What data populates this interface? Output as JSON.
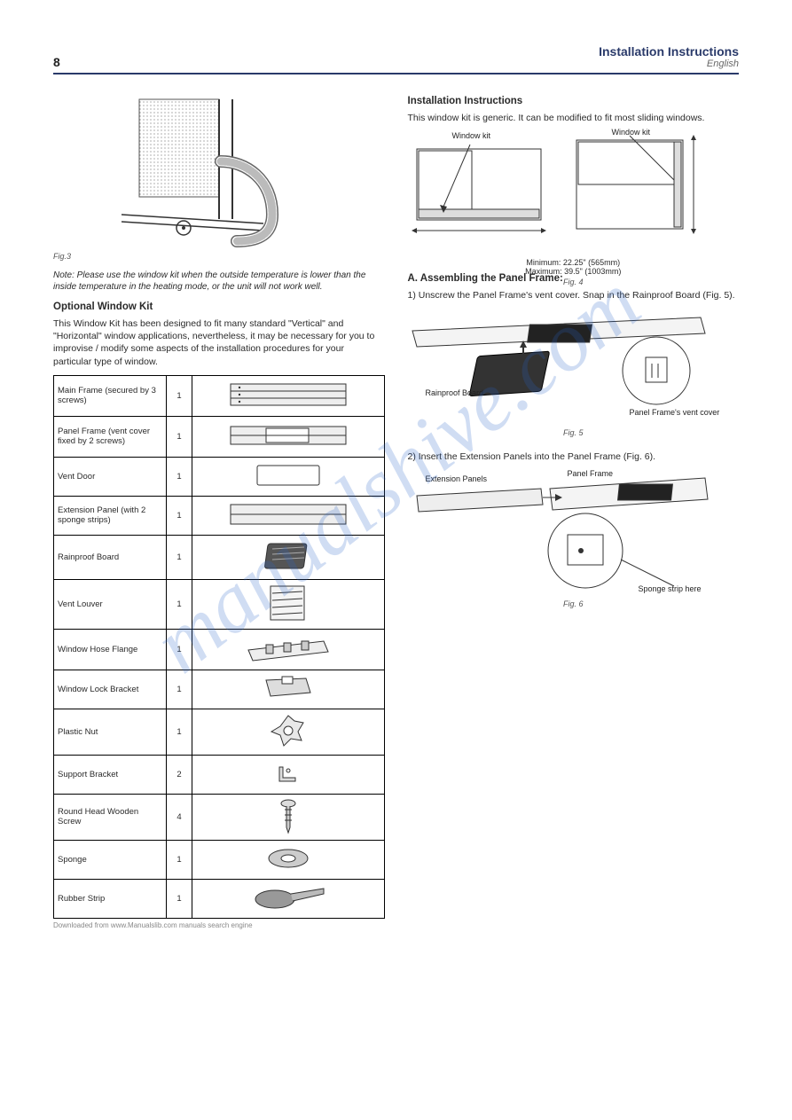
{
  "header": {
    "page_no": "8",
    "title": "Installation Instructions",
    "lang": "English"
  },
  "col1": {
    "fig3_caption": "Fig.3",
    "note_temp": "Note: Please use the window kit when the outside temperature is lower than the inside temperature in the heating mode, or the unit will not work well.",
    "sec_kit_title": "Optional Window Kit",
    "sec_kit_text": "This Window Kit has been designed to fit many standard \"Vertical\" and \"Horizontal\" window applications, nevertheless, it may be necessary for you to improvise / modify some aspects of the installation procedures for your particular type of window."
  },
  "parts": [
    {
      "name": "Main Frame (secured by 3 screws)",
      "qty": "1"
    },
    {
      "name": "Panel Frame (vent cover fixed by 2 screws)",
      "qty": "1"
    },
    {
      "name": "Vent Door",
      "qty": "1"
    },
    {
      "name": "Extension Panel (with 2 sponge strips)",
      "qty": "1"
    },
    {
      "name": "Rainproof Board",
      "qty": "1"
    },
    {
      "name": "Vent Louver",
      "qty": "1"
    },
    {
      "name": "Window Hose Flange",
      "qty": "1"
    },
    {
      "name": "Window Lock Bracket",
      "qty": "1"
    },
    {
      "name": "Plastic Nut",
      "qty": "1"
    },
    {
      "name": "Support Bracket",
      "qty": "2"
    },
    {
      "name": "Round Head Wooden Screw",
      "qty": "4"
    },
    {
      "name": "Sponge",
      "qty": "1"
    },
    {
      "name": "Rubber Strip",
      "qty": "1"
    }
  ],
  "col2": {
    "sec_inst_title": "Installation Instructions",
    "inst_intro": "This window kit is generic. It can be modified to fit most sliding windows.",
    "fig4_caption": "Fig. 4",
    "fig4_label1": "Window kit",
    "fig4_label2": "Window kit",
    "fig4_min": "Minimum: 22.25\" (565mm)",
    "fig4_max": "Maximum: 39.5\" (1003mm)",
    "step_a_title": "A. Assembling the Panel Frame:",
    "step_a_1": "1) Unscrew the Panel Frame's vent cover. Snap in the Rainproof Board (Fig. 5).",
    "fig5_caption": "Fig. 5",
    "fig5_label_rain": "Rainproof Board",
    "fig5_label_vent": "Panel Frame's vent cover",
    "step_a_2": "2) Insert the Extension Panels into the Panel Frame (Fig. 6).",
    "fig6_caption": "Fig. 6",
    "fig6_label_ext": "Extension Panels",
    "fig6_label_pf": "Panel Frame",
    "fig6_label_sponge": "Sponge strip here"
  },
  "footer": "Downloaded from www.Manualslib.com manuals search engine",
  "watermark": "manualshive.com",
  "colors": {
    "rule": "#2a3a6a",
    "wm": "rgba(40,100,200,0.22)"
  }
}
